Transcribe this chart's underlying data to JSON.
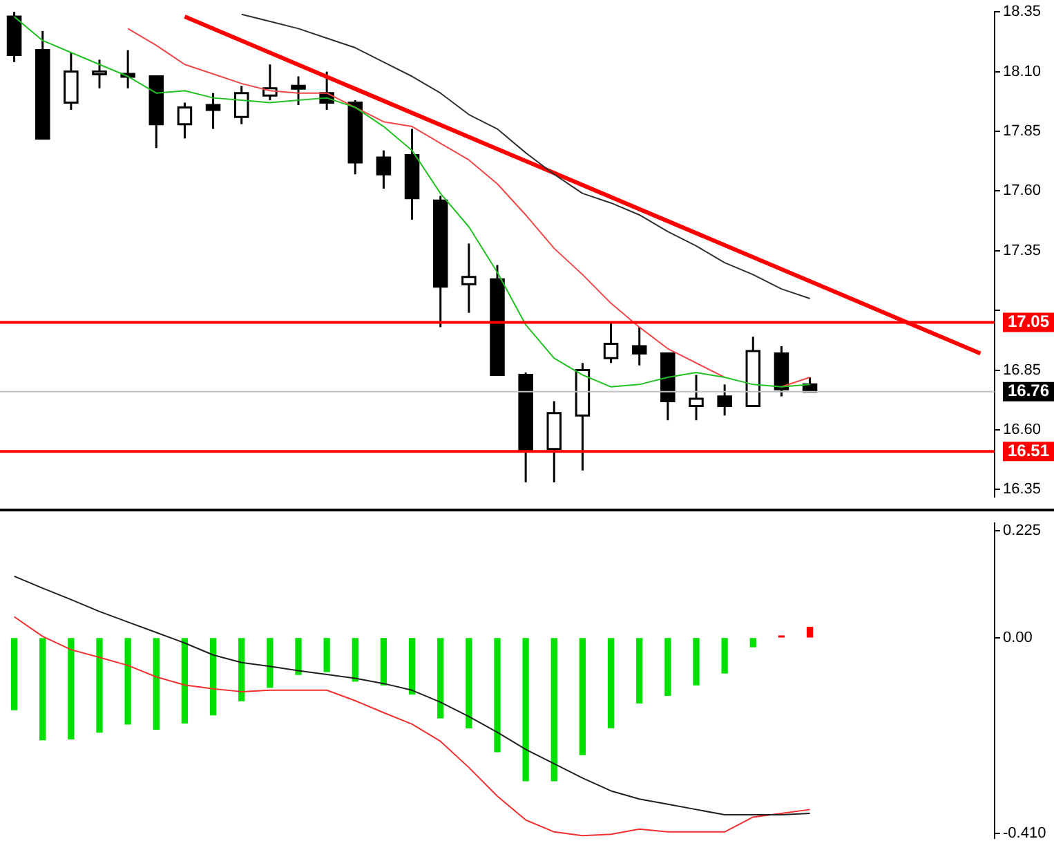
{
  "chart_data": [
    {
      "type": "candlestick",
      "categories": [
        null,
        null,
        null,
        null,
        null,
        null,
        null,
        null,
        null,
        null,
        null,
        null,
        null,
        null,
        null,
        null,
        null,
        null,
        null,
        null,
        null,
        null,
        null,
        null,
        null,
        null,
        null,
        null,
        null,
        null,
        null,
        null,
        null,
        null,
        null
      ],
      "ohlc": [
        [
          18.33,
          18.35,
          18.14,
          18.17
        ],
        [
          18.19,
          18.27,
          17.82,
          17.82
        ],
        [
          17.97,
          18.18,
          17.94,
          18.1
        ],
        [
          18.09,
          18.15,
          18.03,
          18.1
        ],
        [
          18.09,
          18.19,
          18.03,
          18.08
        ],
        [
          18.08,
          18.08,
          17.78,
          17.88
        ],
        [
          17.88,
          17.97,
          17.82,
          17.95
        ],
        [
          17.96,
          18.01,
          17.86,
          17.94
        ],
        [
          17.91,
          18.04,
          17.88,
          18.01
        ],
        [
          18.0,
          18.13,
          17.98,
          18.03
        ],
        [
          18.04,
          18.08,
          17.96,
          18.03
        ],
        [
          18.01,
          18.1,
          17.94,
          17.97
        ],
        [
          17.97,
          17.98,
          17.67,
          17.72
        ],
        [
          17.74,
          17.77,
          17.61,
          17.67
        ],
        [
          17.75,
          17.86,
          17.48,
          17.57
        ],
        [
          17.56,
          17.58,
          17.03,
          17.2
        ],
        [
          17.21,
          17.38,
          17.09,
          17.24
        ],
        [
          17.23,
          17.29,
          16.83,
          16.83
        ],
        [
          16.83,
          16.84,
          16.38,
          16.51
        ],
        [
          16.52,
          16.72,
          16.38,
          16.67
        ],
        [
          16.66,
          16.88,
          16.43,
          16.85
        ],
        [
          16.9,
          17.05,
          16.88,
          16.96
        ],
        [
          16.95,
          17.03,
          16.87,
          16.92
        ],
        [
          16.92,
          16.92,
          16.64,
          16.72
        ],
        [
          16.7,
          16.83,
          16.64,
          16.73
        ],
        [
          16.74,
          16.79,
          16.66,
          16.7
        ],
        [
          16.7,
          16.99,
          16.7,
          16.93
        ],
        [
          16.92,
          16.95,
          16.74,
          16.77
        ],
        [
          16.79,
          16.82,
          16.76,
          16.76
        ],
        null,
        null,
        null,
        null,
        null,
        null
      ],
      "series": [
        {
          "type": "line",
          "color": "#22c022",
          "values": [
            18.33,
            18.23,
            18.18,
            18.13,
            18.08,
            18.01,
            18.02,
            17.99,
            17.98,
            17.97,
            17.98,
            17.99,
            17.95,
            17.87,
            17.77,
            17.59,
            17.45,
            17.26,
            17.04,
            16.9,
            16.83,
            16.78,
            16.79,
            16.82,
            16.84,
            16.82,
            16.79,
            16.78,
            16.79,
            null,
            null,
            null,
            null,
            null,
            null
          ]
        },
        {
          "type": "line",
          "color": "#f04848",
          "values": [
            null,
            null,
            null,
            null,
            18.28,
            18.21,
            18.13,
            18.09,
            18.05,
            18.02,
            18.01,
            18.01,
            17.95,
            17.89,
            17.87,
            17.8,
            17.73,
            17.63,
            17.5,
            17.36,
            17.25,
            17.13,
            17.03,
            16.94,
            16.88,
            16.82,
            null,
            16.78,
            16.82,
            null,
            null,
            null,
            null,
            null,
            null
          ]
        },
        {
          "type": "line",
          "color": "#303030",
          "values": [
            null,
            null,
            null,
            null,
            null,
            null,
            null,
            null,
            18.34,
            18.31,
            18.28,
            18.24,
            18.2,
            18.14,
            18.08,
            18.01,
            17.92,
            17.86,
            17.76,
            17.67,
            17.59,
            17.55,
            17.5,
            17.43,
            17.37,
            17.3,
            17.25,
            17.19,
            17.15,
            null,
            null,
            null,
            null,
            null,
            null
          ]
        },
        {
          "type": "line",
          "color": "#ff0000",
          "values": [
            null,
            null,
            null,
            null,
            null,
            null,
            18.33,
            null,
            null,
            null,
            null,
            null,
            null,
            null,
            null,
            null,
            null,
            null,
            null,
            null,
            null,
            null,
            null,
            null,
            null,
            null,
            null,
            null,
            null,
            null,
            null,
            null,
            null,
            null,
            16.92
          ]
        }
      ],
      "ylim": [
        16.32,
        18.35
      ],
      "yticks": [
        16.35,
        {
          "value": 16.6,
          "label": "16.60"
        },
        16.85,
        {
          "value": 17.1,
          "label": null
        },
        17.35,
        {
          "value": 17.6,
          "label": "17.60"
        },
        17.85,
        {
          "value": 18.1,
          "label": "18.10"
        },
        18.35
      ],
      "ref_lines": [
        {
          "axis": "y",
          "value": 17.05,
          "label": "17.05",
          "color": "#ff0000"
        },
        {
          "axis": "y",
          "value": 16.51,
          "label": "16.51",
          "color": "#ff0000"
        },
        {
          "axis": "y",
          "value": 16.76,
          "label": "16.76",
          "color": "#c0c0c0"
        }
      ],
      "tick_labels": "y",
      "marker": "none"
    },
    {
      "type": "bar",
      "categories": [
        null,
        null,
        null,
        null,
        null,
        null,
        null,
        null,
        null,
        null,
        null,
        null,
        null,
        null,
        null,
        null,
        null,
        null,
        null,
        null,
        null,
        null,
        null,
        null,
        null,
        null,
        null,
        null,
        null,
        null,
        null,
        null,
        null,
        null,
        null
      ],
      "series": [
        {
          "type": "bar",
          "colors": [
            "#00e000",
            "#00e000",
            "#00e000",
            "#00e000",
            "#00e000",
            "#00e000",
            "#00e000",
            "#00e000",
            "#00e000",
            "#00e000",
            "#00e000",
            "#00e000",
            "#00e000",
            "#00e000",
            "#00e000",
            "#00e000",
            "#00e000",
            "#00e000",
            "#00e000",
            "#00e000",
            "#00e000",
            "#00e000",
            "#00e000",
            "#00e000",
            "#00e000",
            "#00e000",
            "#00e000",
            "#ff0000",
            "#ff0000",
            null,
            null,
            null,
            null,
            null,
            null
          ],
          "values": [
            -0.151,
            -0.214,
            -0.212,
            -0.198,
            -0.181,
            -0.192,
            -0.179,
            -0.162,
            -0.132,
            -0.104,
            -0.077,
            -0.071,
            -0.091,
            -0.099,
            -0.118,
            -0.168,
            -0.189,
            -0.239,
            -0.3,
            -0.3,
            -0.245,
            -0.189,
            -0.137,
            -0.121,
            -0.099,
            -0.074,
            -0.019,
            0.004,
            0.022,
            null,
            null,
            null,
            null,
            null,
            null
          ]
        },
        {
          "type": "line",
          "color": "#202020",
          "values": [
            0.129,
            0.104,
            0.08,
            0.055,
            0.033,
            0.011,
            -0.011,
            -0.036,
            -0.052,
            -0.06,
            -0.069,
            -0.077,
            -0.085,
            -0.096,
            -0.11,
            -0.135,
            -0.165,
            -0.198,
            -0.234,
            -0.264,
            -0.294,
            -0.321,
            -0.338,
            -0.349,
            -0.36,
            -0.371,
            -0.371,
            -0.371,
            -0.368,
            null,
            null,
            null,
            null,
            null,
            null
          ]
        },
        {
          "type": "line",
          "color": "#f03030",
          "values": [
            0.044,
            0.003,
            -0.025,
            -0.041,
            -0.058,
            -0.082,
            -0.099,
            -0.107,
            -0.113,
            -0.11,
            -0.11,
            -0.11,
            -0.132,
            -0.157,
            -0.181,
            -0.217,
            -0.272,
            -0.332,
            -0.382,
            -0.407,
            -0.415,
            -0.412,
            -0.401,
            -0.407,
            -0.407,
            -0.407,
            -0.376,
            -0.368,
            -0.36,
            null,
            null,
            null,
            null,
            null,
            null
          ]
        }
      ],
      "ylim": [
        -0.42,
        0.24
      ],
      "yticks": [
        {
          "value": -0.41,
          "label": "-0.410"
        },
        {
          "value": 0,
          "label": "0.00"
        },
        0.225
      ],
      "tick_labels": "y",
      "marker": "none"
    }
  ]
}
